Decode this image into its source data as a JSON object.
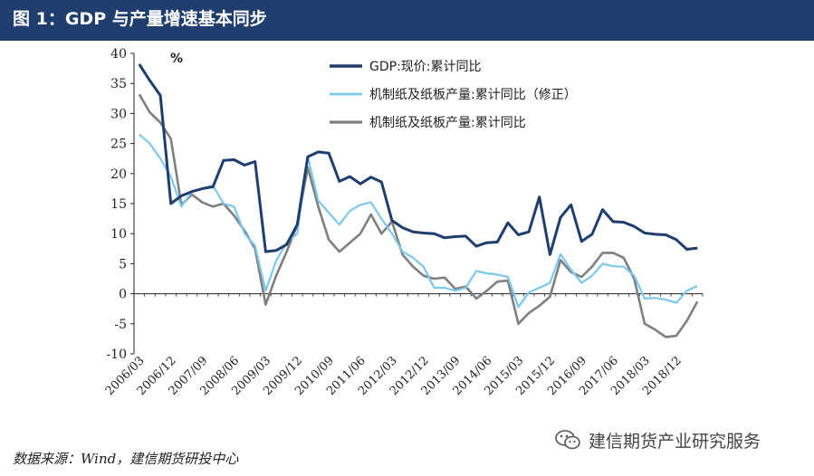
{
  "header": {
    "title": "图 1：GDP 与产量增速基本同步"
  },
  "footer": {
    "source": "数据来源：Wind，建信期货研投中心",
    "watermark": "建信期货产业研究服务",
    "watermark_icon": "wechat-icon"
  },
  "chart_data": {
    "type": "line",
    "unit_label": "%",
    "ylim": [
      -10,
      40
    ],
    "yticks": [
      -10,
      -5,
      0,
      5,
      10,
      15,
      20,
      25,
      30,
      35,
      40
    ],
    "grid": false,
    "legend_placement": "top-center",
    "x_tick_labels": [
      "2006/03",
      "2006/12",
      "2007/09",
      "2008/06",
      "2009/03",
      "2009/12",
      "2010/09",
      "2011/06",
      "2012/03",
      "2012/12",
      "2013/09",
      "2014/06",
      "2015/03",
      "2015/12",
      "2016/09",
      "2017/06",
      "2018/03",
      "2018/12"
    ],
    "x": [
      "2006/03",
      "2006/06",
      "2006/09",
      "2006/12",
      "2007/03",
      "2007/06",
      "2007/09",
      "2007/12",
      "2008/03",
      "2008/06",
      "2008/09",
      "2008/12",
      "2009/03",
      "2009/06",
      "2009/09",
      "2009/12",
      "2010/03",
      "2010/06",
      "2010/09",
      "2010/12",
      "2011/03",
      "2011/06",
      "2011/09",
      "2011/12",
      "2012/03",
      "2012/06",
      "2012/09",
      "2012/12",
      "2013/03",
      "2013/06",
      "2013/09",
      "2013/12",
      "2014/03",
      "2014/06",
      "2014/09",
      "2014/12",
      "2015/03",
      "2015/06",
      "2015/09",
      "2015/12",
      "2016/03",
      "2016/06",
      "2016/09",
      "2016/12",
      "2017/03",
      "2017/06",
      "2017/09",
      "2017/12",
      "2018/03",
      "2018/06",
      "2018/09",
      "2018/12",
      "2019/03",
      "2019/06"
    ],
    "series": [
      {
        "name": "GDP:现价:累计同比",
        "color": "#1f3e6e",
        "width": 3,
        "values": [
          38.2,
          35.5,
          33.0,
          15.0,
          16.3,
          17.0,
          17.5,
          17.8,
          22.2,
          22.3,
          21.4,
          22.0,
          7.0,
          7.2,
          8.2,
          11.5,
          22.8,
          23.6,
          23.4,
          18.7,
          19.5,
          18.3,
          19.4,
          18.6,
          12.2,
          11.0,
          10.3,
          10.1,
          10.0,
          9.3,
          9.5,
          9.6,
          7.9,
          8.5,
          8.6,
          11.8,
          9.8,
          10.3,
          16.1,
          6.5,
          12.7,
          14.8,
          8.7,
          9.9,
          14.0,
          12.0,
          11.9,
          11.2,
          10.1,
          9.9,
          9.8,
          9.0,
          7.4,
          7.6
        ]
      },
      {
        "name": "机制纸及纸板产量:累计同比（修正）",
        "color": "#7cc8f0",
        "width": 2.2,
        "values": [
          26.5,
          25.0,
          22.5,
          19.5,
          14.5,
          17.0,
          17.5,
          18.0,
          15.0,
          14.5,
          10.0,
          8.0,
          0.5,
          5.5,
          8.5,
          10.0,
          22.8,
          15.5,
          13.5,
          11.5,
          13.8,
          14.8,
          15.2,
          12.5,
          10.0,
          7.0,
          6.0,
          4.5,
          1.0,
          1.0,
          0.5,
          1.0,
          3.8,
          3.4,
          3.2,
          2.8,
          -2.2,
          0.2,
          1.0,
          1.8,
          6.6,
          4.0,
          1.8,
          3.0,
          5.0,
          4.6,
          4.5,
          3.0,
          -0.8,
          -0.7,
          -1.0,
          -1.5,
          0.5,
          1.3
        ]
      },
      {
        "name": "机制纸及纸板产量:累计同比",
        "color": "#7f7f7f",
        "width": 2.6,
        "values": [
          33.2,
          30.2,
          28.5,
          25.8,
          14.8,
          16.5,
          15.2,
          14.5,
          15.0,
          13.0,
          10.5,
          7.5,
          -1.8,
          3.0,
          7.0,
          11.5,
          21.0,
          14.5,
          9.0,
          7.0,
          8.5,
          10.0,
          13.2,
          10.0,
          12.0,
          6.5,
          4.5,
          3.0,
          2.5,
          2.7,
          0.8,
          1.2,
          -0.8,
          0.5,
          2.0,
          2.2,
          -5.0,
          -3.2,
          -2.0,
          -0.5,
          5.6,
          3.6,
          2.8,
          4.5,
          6.8,
          6.8,
          6.0,
          2.5,
          -5.0,
          -6.0,
          -7.2,
          -7.0,
          -4.5,
          -1.3
        ]
      }
    ]
  }
}
